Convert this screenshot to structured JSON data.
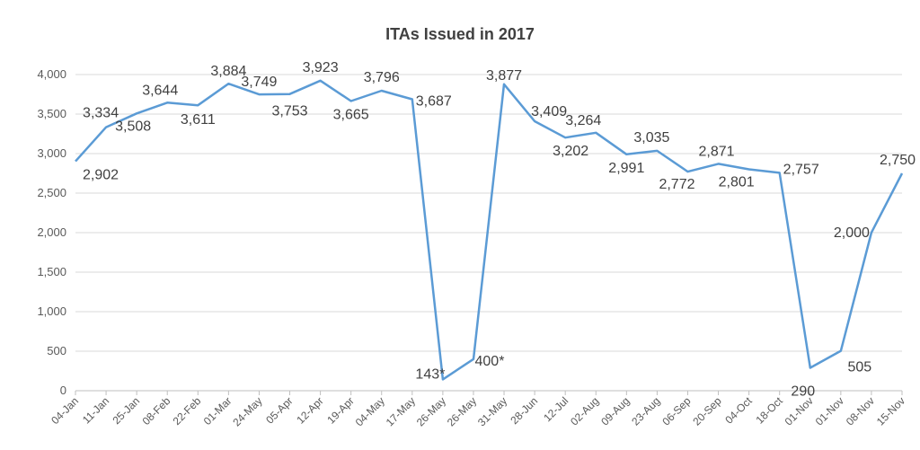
{
  "chart_data": {
    "type": "line",
    "title": "ITAs Issued in 2017",
    "xlabel": "",
    "ylabel": "",
    "ylim": [
      0,
      4000
    ],
    "yticks": [
      0,
      500,
      1000,
      1500,
      2000,
      2500,
      3000,
      3500,
      4000
    ],
    "ytick_labels": [
      "0",
      "500",
      "1,000",
      "1,500",
      "2,000",
      "2,500",
      "3,000",
      "3,500",
      "4,000"
    ],
    "grid": true,
    "legend": "none",
    "series_color": "#5b9bd5",
    "categories": [
      "04-Jan",
      "11-Jan",
      "25-Jan",
      "08-Feb",
      "22-Feb",
      "01-Mar",
      "24-May",
      "05-Apr",
      "12-Apr",
      "19-Apr",
      "04-May",
      "17-May",
      "26-May",
      "26-May",
      "31-May",
      "28-Jun",
      "12-Jul",
      "02-Aug",
      "09-Aug",
      "23-Aug",
      "06-Sep",
      "20-Sep",
      "04-Oct",
      "18-Oct",
      "01-Nov",
      "01-Nov",
      "08-Nov",
      "15-Nov"
    ],
    "values": [
      2902,
      3334,
      3508,
      3644,
      3611,
      3884,
      3749,
      3753,
      3923,
      3665,
      3796,
      3687,
      143,
      400,
      3877,
      3409,
      3202,
      3264,
      2991,
      3035,
      2772,
      2871,
      2801,
      2757,
      290,
      505,
      2000,
      2750
    ],
    "data_labels": [
      "2,902",
      "3,334",
      "3,508",
      "3,644",
      "3,611",
      "3,884",
      "3,749",
      "3,753",
      "3,923",
      "3,665",
      "3,796",
      "3,687",
      "143*",
      "400*",
      "3,877",
      "3,409",
      "3,202",
      "3,264",
      "2,991",
      "3,035",
      "2,772",
      "2,871",
      "2,801",
      "2,757",
      "290",
      "505",
      "2,000",
      "2,750"
    ]
  }
}
